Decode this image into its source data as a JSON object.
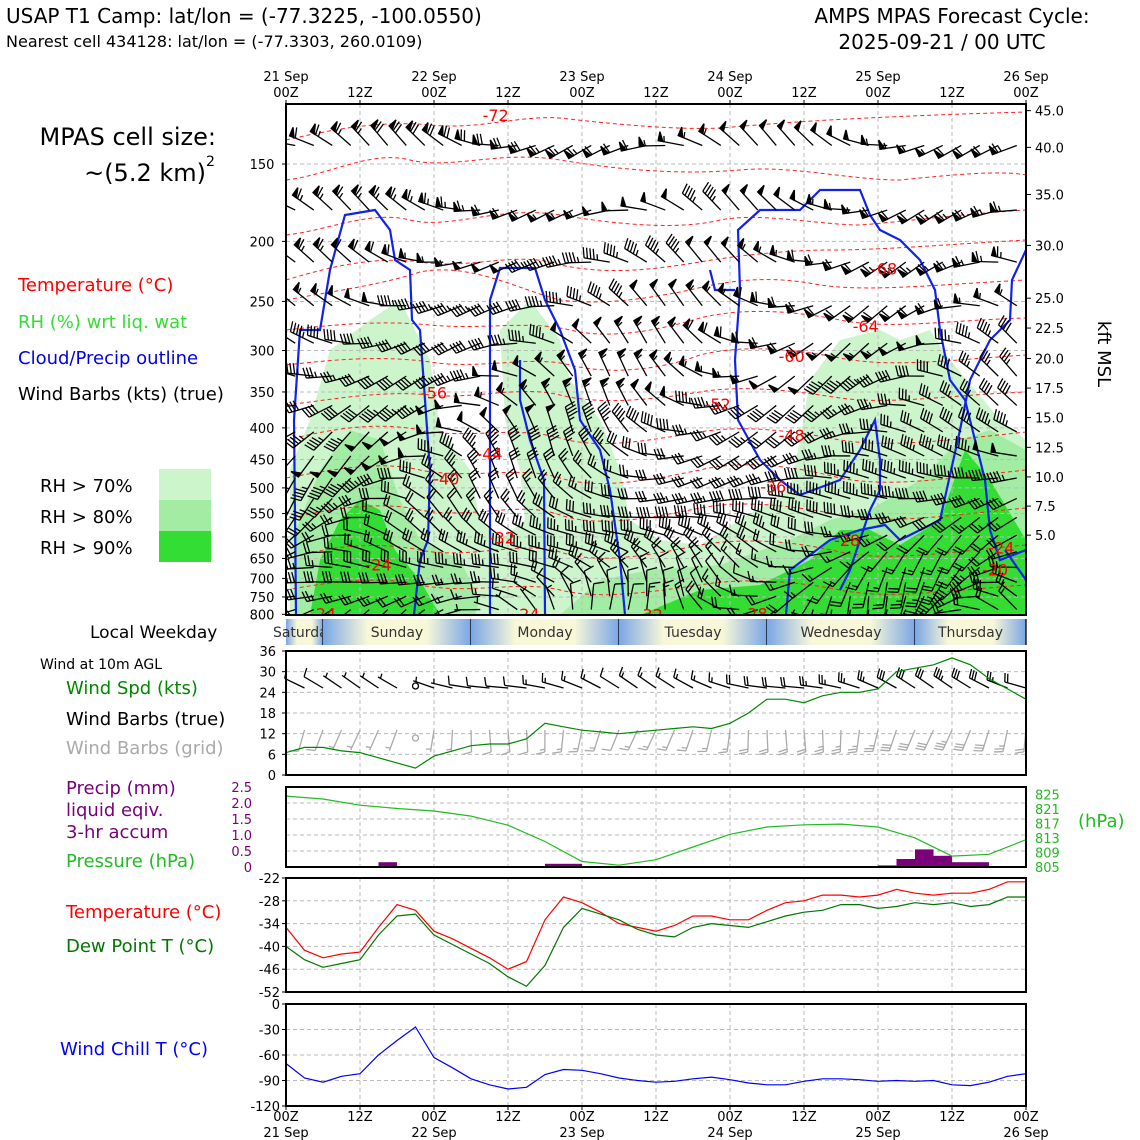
{
  "header": {
    "site_title": "USAP T1 Camp: lat/lon = (-77.3225, -100.0550)",
    "nearest_cell": "Nearest cell 434128: lat/lon = (-77.3303, 260.0109)",
    "forecast_label": "AMPS MPAS Forecast Cycle:",
    "forecast_cycle": "2025-09-21 / 00 UTC"
  },
  "left_legend": {
    "cell_size_label": "MPAS cell size:",
    "cell_size_value": "~(5.2 km)",
    "cell_size_exp": "2",
    "temperature": "Temperature (°C)",
    "rh": "RH (%) wrt liq. wat",
    "cloud": "Cloud/Precip outline",
    "wind_barbs": "Wind Barbs (kts) (true)",
    "rh_levels": [
      "RH > 70%",
      "RH > 80%",
      "RH > 90%"
    ]
  },
  "colors": {
    "temperature": "#ff0000",
    "rh": "#33dd33",
    "cloud": "#0000ee",
    "rh70": "#ccf5cc",
    "rh80": "#a3eca3",
    "rh90": "#33dd33",
    "pressure": "#22bb22",
    "dewpoint": "#007700",
    "precip": "#7a007a",
    "windchill": "#0000ff",
    "grid_barb": "#aaaaaa"
  },
  "time_axis": {
    "top_dates": [
      "21 Sep",
      "22 Sep",
      "23 Sep",
      "24 Sep",
      "25 Sep",
      "26 Sep"
    ],
    "top_ticks": [
      "00Z",
      "12Z",
      "00Z",
      "12Z",
      "00Z",
      "12Z",
      "00Z",
      "12Z",
      "00Z",
      "12Z",
      "00Z"
    ],
    "bottom_ticks": [
      "00Z",
      "12Z",
      "00Z",
      "12Z",
      "00Z",
      "12Z",
      "00Z",
      "12Z",
      "00Z",
      "12Z",
      "00Z"
    ],
    "bottom_dates": [
      "21 Sep",
      "22 Sep",
      "23 Sep",
      "24 Sep",
      "25 Sep",
      "26 Sep"
    ]
  },
  "weekday_band": {
    "label": "Local Weekday",
    "days": [
      "Saturday",
      "Sunday",
      "Monday",
      "Tuesday",
      "Wednesday",
      "Thursday"
    ]
  },
  "chart_data": [
    {
      "type": "time-height cross section",
      "y_left_label": "Pressure (hPa)",
      "y_left_ticks": [
        150,
        200,
        250,
        300,
        350,
        400,
        450,
        500,
        550,
        600,
        650,
        700,
        750,
        800
      ],
      "y_right_label": "kft MSL",
      "y_right_ticks": [
        "45.0",
        "40.0",
        "35.0",
        "30.0",
        "25.0",
        "22.5",
        "20.0",
        "17.5",
        "15.0",
        "12.5",
        "10.0",
        "7.5",
        "5.0"
      ],
      "y_right_pressures": [
        123,
        141,
        168,
        203,
        247,
        276,
        309,
        345,
        385,
        430,
        480,
        535,
        596
      ],
      "temperature_labels": [
        {
          "text": "-72",
          "hour": 34,
          "p": 125
        },
        {
          "text": "-68",
          "hour": 97,
          "p": 221
        },
        {
          "text": "-64",
          "hour": 94,
          "p": 274
        },
        {
          "text": "-60",
          "hour": 82,
          "p": 306
        },
        {
          "text": "-56",
          "hour": 24,
          "p": 351
        },
        {
          "text": "-52",
          "hour": 70,
          "p": 366
        },
        {
          "text": "-48",
          "hour": 82,
          "p": 411
        },
        {
          "text": "-44",
          "hour": 33,
          "p": 440
        },
        {
          "text": "-40",
          "hour": 26,
          "p": 483
        },
        {
          "text": "-36",
          "hour": 79,
          "p": 497
        },
        {
          "text": "-32",
          "hour": 35,
          "p": 601
        },
        {
          "text": "-28",
          "hour": 91,
          "p": 607
        },
        {
          "text": "-24",
          "hour": 15,
          "p": 665
        },
        {
          "text": "-24",
          "hour": 116,
          "p": 624
        },
        {
          "text": "-20",
          "hour": 115,
          "p": 677
        },
        {
          "text": "-24",
          "hour": 6,
          "p": 797
        },
        {
          "text": "-24",
          "hour": 39,
          "p": 799
        },
        {
          "text": "-32",
          "hour": 59,
          "p": 800
        },
        {
          "text": "-28",
          "hour": 76,
          "p": 798
        }
      ]
    },
    {
      "type": "line",
      "title": "Wind at 10m AGL",
      "legend": [
        "Wind Spd (kts)",
        "Wind Barbs (true)",
        "Wind Barbs (grid)"
      ],
      "ylim": [
        0,
        36
      ],
      "y_ticks": [
        0,
        6,
        12,
        18,
        24,
        30,
        36
      ],
      "x_hours": [
        0,
        3,
        6,
        9,
        12,
        15,
        18,
        21,
        24,
        27,
        30,
        33,
        36,
        39,
        42,
        45,
        48,
        51,
        54,
        57,
        60,
        63,
        66,
        69,
        72,
        75,
        78,
        81,
        84,
        87,
        90,
        93,
        96,
        99,
        102,
        105,
        108,
        111,
        114,
        117,
        120
      ],
      "series": [
        {
          "name": "Wind Spd (kts)",
          "values": [
            6.5,
            8,
            8,
            7,
            6.5,
            5,
            3.5,
            2,
            5.5,
            7,
            8.5,
            9,
            9,
            10.5,
            15,
            14,
            13,
            12.5,
            12,
            12.5,
            13,
            13.5,
            14,
            13.5,
            15,
            18,
            22,
            22,
            21,
            23,
            24,
            24,
            25,
            30,
            31,
            32,
            34,
            32,
            28,
            25,
            22
          ]
        }
      ]
    },
    {
      "type": "bar+line",
      "legend": [
        "Precip (mm)",
        "liquid eqiv.",
        "3-hr accum",
        "Pressure (hPa)"
      ],
      "precip_ylim": [
        0,
        2.5
      ],
      "precip_ticks": [
        "0",
        "0.5",
        "1.0",
        "1.5",
        "2.0",
        "2.5"
      ],
      "pressure_ticks": [
        805,
        809,
        813,
        817,
        821,
        825
      ],
      "pressure_ylim": [
        805,
        827
      ],
      "precip_bars": [
        {
          "hour": 16.5,
          "mm": 0.15
        },
        {
          "hour": 43.5,
          "mm": 0.1
        },
        {
          "hour": 46.5,
          "mm": 0.1
        },
        {
          "hour": 97.5,
          "mm": 0.05
        },
        {
          "hour": 100.5,
          "mm": 0.25
        },
        {
          "hour": 103.5,
          "mm": 0.55
        },
        {
          "hour": 106.5,
          "mm": 0.35
        },
        {
          "hour": 109.5,
          "mm": 0.15
        },
        {
          "hour": 112.5,
          "mm": 0.15
        }
      ],
      "pressure_hours": [
        0,
        6,
        12,
        18,
        24,
        30,
        36,
        42,
        48,
        54,
        60,
        66,
        72,
        78,
        84,
        90,
        96,
        102,
        108,
        114,
        120
      ],
      "pressure_values": [
        824.5,
        823.7,
        822,
        821.1,
        820.4,
        819,
        816.5,
        812,
        806.5,
        805.5,
        807,
        810.5,
        814,
        816,
        816.6,
        816.8,
        816,
        813,
        808,
        808.5,
        812.5
      ]
    },
    {
      "type": "line",
      "legend": [
        "Temperature (°C)",
        "Dew Point T (°C)"
      ],
      "ylim": [
        -52,
        -22
      ],
      "y_ticks": [
        -22,
        -28,
        -34,
        -40,
        -46,
        -52
      ],
      "x_hours": [
        0,
        3,
        6,
        9,
        12,
        15,
        18,
        21,
        24,
        27,
        30,
        33,
        36,
        39,
        42,
        45,
        48,
        51,
        54,
        57,
        60,
        63,
        66,
        69,
        72,
        75,
        78,
        81,
        84,
        87,
        90,
        93,
        96,
        99,
        102,
        105,
        108,
        111,
        114,
        117,
        120
      ],
      "series": [
        {
          "name": "Temperature (°C)",
          "values": [
            -35,
            -41,
            -43,
            -42,
            -41.5,
            -35,
            -29,
            -30.5,
            -36,
            -38,
            -40.5,
            -43,
            -46,
            -44,
            -33,
            -27,
            -28.5,
            -31,
            -34,
            -35,
            -36,
            -34.5,
            -32,
            -32,
            -33,
            -33,
            -30.5,
            -28.5,
            -28,
            -26.5,
            -26.5,
            -27,
            -26.5,
            -25,
            -26,
            -26.5,
            -26,
            -26,
            -25,
            -23,
            -23
          ]
        },
        {
          "name": "Dew Point T (°C)",
          "values": [
            -40,
            -43.5,
            -45.5,
            -44.5,
            -43.5,
            -37,
            -32,
            -31.5,
            -37,
            -39.5,
            -42,
            -44.5,
            -48,
            -50.5,
            -45,
            -35,
            -30,
            -31.5,
            -33,
            -35.5,
            -37,
            -37.5,
            -35,
            -34,
            -34.5,
            -35,
            -33.5,
            -32,
            -31,
            -30.5,
            -29,
            -29,
            -30,
            -29.5,
            -28.5,
            -29,
            -28.5,
            -29.5,
            -29,
            -27,
            -27
          ]
        }
      ]
    },
    {
      "type": "line",
      "legend": [
        "Wind Chill T (°C)"
      ],
      "ylim": [
        -120,
        0
      ],
      "y_ticks": [
        0,
        -30,
        -60,
        -90,
        -120
      ],
      "x_hours": [
        0,
        3,
        6,
        9,
        12,
        15,
        18,
        21,
        24,
        27,
        30,
        33,
        36,
        39,
        42,
        45,
        48,
        51,
        54,
        57,
        60,
        63,
        66,
        69,
        72,
        75,
        78,
        81,
        84,
        87,
        90,
        93,
        96,
        99,
        102,
        105,
        108,
        111,
        114,
        117,
        120
      ],
      "series": [
        {
          "name": "Wind Chill T (°C)",
          "values": [
            -70,
            -87,
            -92,
            -85,
            -82,
            -60,
            -43,
            -27,
            -63,
            -75,
            -88,
            -95,
            -100,
            -98,
            -83,
            -77,
            -78,
            -82,
            -87,
            -90,
            -92,
            -91,
            -88,
            -86,
            -89,
            -93,
            -95,
            -95,
            -91,
            -88,
            -88,
            -89,
            -91,
            -90,
            -91,
            -90,
            -95,
            -96,
            -92,
            -85,
            -82
          ]
        }
      ]
    }
  ]
}
